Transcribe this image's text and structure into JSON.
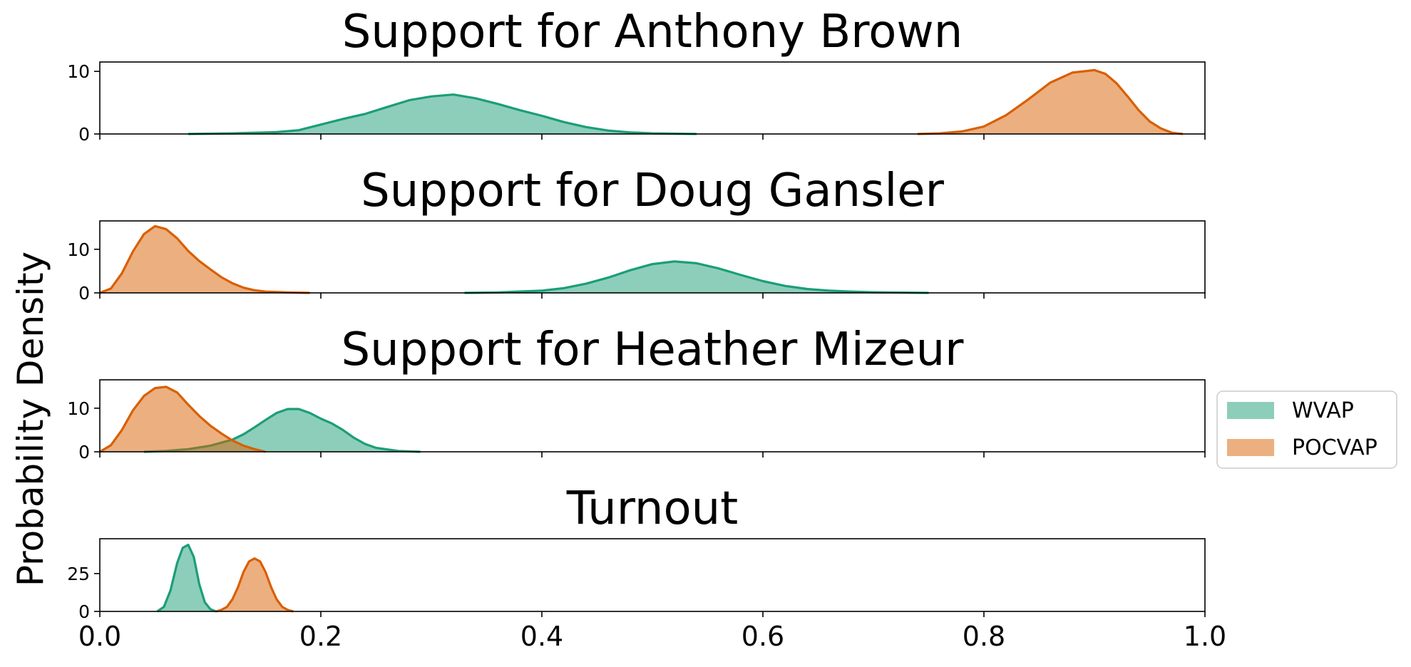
{
  "chart_data": {
    "type": "area",
    "ylabel": "Probability Density",
    "xlim": [
      0.0,
      1.0
    ],
    "x_ticks": [
      "0.0",
      "0.2",
      "0.4",
      "0.6",
      "0.8",
      "1.0"
    ],
    "legend": {
      "placement": "right",
      "entries": [
        {
          "name": "WVAP",
          "color": "#1b9e77"
        },
        {
          "name": "POCVAP",
          "color": "#d95f02"
        }
      ]
    },
    "panels": [
      {
        "title": "Support for Anthony Brown",
        "ylim": [
          0,
          11.5
        ],
        "y_ticks": [
          "0",
          "10"
        ],
        "y_tick_values": [
          0,
          10
        ],
        "series": [
          {
            "name": "WVAP",
            "x": [
              0.08,
              0.12,
              0.16,
              0.18,
              0.2,
              0.22,
              0.24,
              0.26,
              0.28,
              0.3,
              0.32,
              0.34,
              0.36,
              0.38,
              0.4,
              0.42,
              0.44,
              0.46,
              0.48,
              0.5,
              0.54
            ],
            "y": [
              0,
              0.1,
              0.3,
              0.6,
              1.5,
              2.4,
              3.2,
              4.3,
              5.4,
              6.0,
              6.3,
              5.7,
              4.8,
              3.8,
              2.9,
              1.9,
              1.1,
              0.55,
              0.25,
              0.1,
              0
            ]
          },
          {
            "name": "POCVAP",
            "x": [
              0.74,
              0.76,
              0.78,
              0.8,
              0.82,
              0.84,
              0.86,
              0.88,
              0.9,
              0.91,
              0.92,
              0.93,
              0.94,
              0.95,
              0.96,
              0.97,
              0.98
            ],
            "y": [
              0,
              0.1,
              0.4,
              1.2,
              3.0,
              5.5,
              8.2,
              9.8,
              10.2,
              9.6,
              8.1,
              6.0,
              3.8,
              2.0,
              0.9,
              0.2,
              0
            ]
          }
        ]
      },
      {
        "title": "Support for Doug Gansler",
        "ylim": [
          0,
          16.5
        ],
        "y_ticks": [
          "0",
          "10"
        ],
        "y_tick_values": [
          0,
          10
        ],
        "series": [
          {
            "name": "WVAP",
            "x": [
              0.33,
              0.36,
              0.4,
              0.42,
              0.44,
              0.46,
              0.48,
              0.5,
              0.52,
              0.54,
              0.56,
              0.58,
              0.6,
              0.62,
              0.64,
              0.66,
              0.68,
              0.7,
              0.75
            ],
            "y": [
              0,
              0.1,
              0.5,
              1.1,
              2.1,
              3.5,
              5.2,
              6.6,
              7.2,
              6.8,
              5.6,
              4.1,
              2.7,
              1.6,
              0.9,
              0.5,
              0.3,
              0.15,
              0
            ]
          },
          {
            "name": "POCVAP",
            "x": [
              0.0,
              0.01,
              0.02,
              0.03,
              0.04,
              0.05,
              0.06,
              0.07,
              0.08,
              0.09,
              0.1,
              0.11,
              0.12,
              0.13,
              0.14,
              0.15,
              0.17,
              0.19
            ],
            "y": [
              0,
              1.0,
              4.5,
              9.5,
              13.5,
              15.3,
              14.6,
              12.5,
              9.6,
              7.3,
              5.4,
              3.6,
              2.2,
              1.2,
              0.6,
              0.3,
              0.1,
              0
            ]
          }
        ]
      },
      {
        "title": "Support for Heather Mizeur",
        "ylim": [
          0,
          16.5
        ],
        "y_ticks": [
          "0",
          "10"
        ],
        "y_tick_values": [
          0,
          10
        ],
        "series": [
          {
            "name": "WVAP",
            "x": [
              0.04,
              0.06,
              0.08,
              0.1,
              0.12,
              0.13,
              0.14,
              0.15,
              0.16,
              0.17,
              0.18,
              0.19,
              0.2,
              0.21,
              0.22,
              0.23,
              0.24,
              0.25,
              0.27,
              0.29
            ],
            "y": [
              0,
              0.2,
              0.6,
              1.4,
              2.8,
              4.0,
              5.6,
              7.3,
              8.9,
              9.8,
              9.8,
              8.9,
              7.6,
              6.5,
              5.0,
              3.2,
              1.8,
              0.9,
              0.2,
              0
            ]
          },
          {
            "name": "POCVAP",
            "x": [
              0.0,
              0.01,
              0.02,
              0.03,
              0.04,
              0.05,
              0.06,
              0.07,
              0.08,
              0.09,
              0.1,
              0.11,
              0.12,
              0.13,
              0.14,
              0.15
            ],
            "y": [
              0,
              1.5,
              5.0,
              9.5,
              12.8,
              14.6,
              14.9,
              13.6,
              10.8,
              8.2,
              6.0,
              4.2,
              2.6,
              1.4,
              0.6,
              0
            ]
          }
        ]
      },
      {
        "title": "Turnout",
        "ylim": [
          0,
          48
        ],
        "y_ticks": [
          "0",
          "25"
        ],
        "y_tick_values": [
          0,
          25
        ],
        "series": [
          {
            "name": "WVAP",
            "x": [
              0.052,
              0.058,
              0.064,
              0.07,
              0.075,
              0.08,
              0.085,
              0.09,
              0.095,
              0.1,
              0.105
            ],
            "y": [
              0,
              3,
              14,
              32,
              42,
              44,
              36,
              18,
              6,
              1.5,
              0
            ]
          },
          {
            "name": "POCVAP",
            "x": [
              0.105,
              0.11,
              0.115,
              0.12,
              0.125,
              0.13,
              0.135,
              0.14,
              0.145,
              0.15,
              0.155,
              0.16,
              0.165,
              0.17,
              0.175
            ],
            "y": [
              0,
              1,
              3,
              8,
              16,
              26,
              33,
              35,
              33,
              26,
              16,
              8,
              3,
              1,
              0
            ]
          }
        ]
      }
    ]
  }
}
